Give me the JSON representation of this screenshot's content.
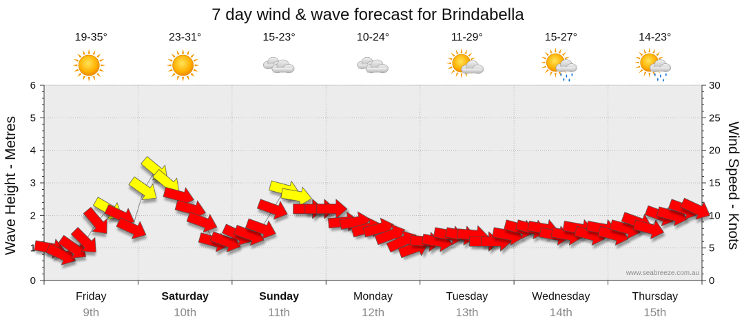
{
  "chart_data": {
    "type": "line",
    "title": "7 day wind & wave forecast for Brindabella",
    "ylabel_left": "Wave Height - Metres",
    "ylabel_right": "Wind Speed - Knots",
    "ylim_left": [
      0,
      6
    ],
    "ylim_right": [
      0,
      30
    ],
    "left_ticks": [
      "0",
      "1",
      "2",
      "3",
      "4",
      "5",
      "6"
    ],
    "right_ticks": [
      "0",
      "5",
      "10",
      "15",
      "20",
      "25",
      "30"
    ],
    "watermark": "www.seabreeze.com.au",
    "grid": true,
    "colors": {
      "strong": "#ffff00",
      "normal": "#ff0000",
      "outline": "#444444"
    },
    "days": [
      {
        "day": "Friday",
        "date": "9th",
        "temp": "19-35°",
        "icon": "sun-icon",
        "bold": false
      },
      {
        "day": "Saturday",
        "date": "10th",
        "temp": "23-31°",
        "icon": "sun-icon",
        "bold": true
      },
      {
        "day": "Sunday",
        "date": "11th",
        "temp": "15-23°",
        "icon": "cloud-icon",
        "bold": true
      },
      {
        "day": "Monday",
        "date": "12th",
        "temp": "10-24°",
        "icon": "cloud-icon",
        "bold": false
      },
      {
        "day": "Tuesday",
        "date": "13th",
        "temp": "11-29°",
        "icon": "partly-cloudy-icon",
        "bold": false
      },
      {
        "day": "Wednesday",
        "date": "14th",
        "temp": "15-27°",
        "icon": "sun-cloud-rain-icon",
        "bold": false
      },
      {
        "day": "Thursday",
        "date": "15th",
        "temp": "14-23°",
        "icon": "sun-cloud-rain-icon",
        "bold": false
      }
    ],
    "wind_series": {
      "name": "",
      "x_hours": [
        0,
        3,
        6,
        9,
        12,
        15,
        18,
        21,
        24,
        27,
        30,
        33,
        36,
        39,
        42,
        45,
        48,
        51,
        54,
        57,
        60,
        63,
        66,
        69,
        72,
        75,
        78,
        81,
        84,
        87,
        90,
        93,
        96,
        99,
        102,
        105,
        108,
        111,
        114,
        117,
        120,
        123,
        126,
        129,
        132,
        135,
        138,
        141,
        144,
        147,
        150,
        153,
        156,
        159,
        162,
        165
      ],
      "knots": [
        5,
        4,
        5,
        6,
        9,
        11,
        10,
        8,
        14,
        17,
        15,
        13,
        11,
        9,
        6,
        6,
        7,
        7,
        8,
        11,
        14,
        13,
        11,
        11,
        11,
        9,
        9,
        8,
        8,
        7,
        6,
        5,
        6,
        6,
        7,
        7,
        7,
        6,
        6,
        7,
        8,
        8,
        8,
        7,
        7,
        8,
        7,
        8,
        7,
        8,
        9,
        8,
        10,
        10,
        11,
        11
      ],
      "dir_deg": [
        10,
        25,
        35,
        45,
        50,
        30,
        25,
        25,
        35,
        40,
        40,
        15,
        15,
        20,
        15,
        20,
        25,
        20,
        20,
        20,
        15,
        10,
        0,
        0,
        0,
        -5,
        -10,
        -15,
        -15,
        -20,
        -25,
        -20,
        5,
        10,
        10,
        10,
        5,
        0,
        0,
        10,
        15,
        15,
        10,
        10,
        10,
        10,
        15,
        10,
        15,
        15,
        20,
        15,
        20,
        15,
        20,
        25
      ],
      "strong": [
        false,
        false,
        false,
        false,
        false,
        true,
        false,
        false,
        true,
        true,
        true,
        false,
        false,
        false,
        false,
        false,
        false,
        false,
        false,
        false,
        true,
        true,
        false,
        false,
        false,
        false,
        false,
        false,
        false,
        false,
        false,
        false,
        false,
        false,
        false,
        false,
        false,
        false,
        false,
        false,
        false,
        false,
        false,
        false,
        false,
        false,
        false,
        false,
        false,
        false,
        false,
        false,
        false,
        false,
        false,
        false
      ]
    }
  }
}
